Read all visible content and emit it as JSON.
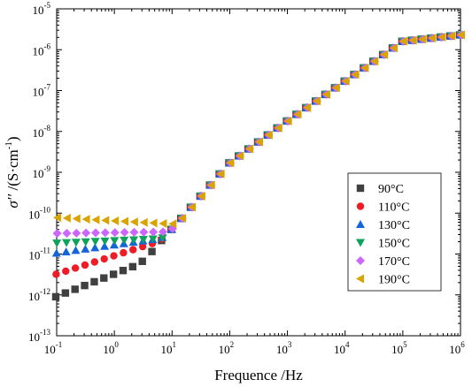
{
  "chart_data": {
    "type": "scatter",
    "xscale": "log",
    "yscale": "log",
    "xlim": [
      0.1,
      1000000
    ],
    "ylim": [
      1e-13,
      1e-05
    ],
    "xlabel": "Frequence /Hz",
    "ylabel": "σ′′ /(S·cm⁻¹)",
    "ylabel_parts": {
      "sigma": "σ′′ ",
      "unit_open": "/(S·cm",
      "unit_exp": "-1",
      "unit_close": ")"
    },
    "xticks": [
      {
        "base": "10",
        "exp": "-1",
        "value": 0.1
      },
      {
        "base": "10",
        "exp": "0",
        "value": 1
      },
      {
        "base": "10",
        "exp": "1",
        "value": 10
      },
      {
        "base": "10",
        "exp": "2",
        "value": 100
      },
      {
        "base": "10",
        "exp": "3",
        "value": 1000
      },
      {
        "base": "10",
        "exp": "4",
        "value": 10000
      },
      {
        "base": "10",
        "exp": "5",
        "value": 100000
      },
      {
        "base": "10",
        "exp": "6",
        "value": 1000000
      }
    ],
    "yticks": [
      {
        "base": "10",
        "exp": "-13",
        "value": 1e-13
      },
      {
        "base": "10",
        "exp": "-12",
        "value": 1e-12
      },
      {
        "base": "10",
        "exp": "-11",
        "value": 1e-11
      },
      {
        "base": "10",
        "exp": "-10",
        "value": 1e-10
      },
      {
        "base": "10",
        "exp": "-9",
        "value": 1e-09
      },
      {
        "base": "10",
        "exp": "-8",
        "value": 1e-08
      },
      {
        "base": "10",
        "exp": "-7",
        "value": 1e-07
      },
      {
        "base": "10",
        "exp": "-6",
        "value": 1e-06
      },
      {
        "base": "10",
        "exp": "-5",
        "value": 1e-05
      }
    ],
    "legend_position": "right-middle",
    "grid": false,
    "series": [
      {
        "name": "90°C",
        "marker": "square",
        "color": "#404040",
        "low_freq_value": 9e-13,
        "low_freq_slope": 0.55
      },
      {
        "name": "110°C",
        "marker": "circle",
        "color": "#ee1c25",
        "low_freq_value": 3.2e-12,
        "low_freq_slope": 0.45
      },
      {
        "name": "130°C",
        "marker": "triangle-up",
        "color": "#1565d8",
        "low_freq_value": 1.05e-11,
        "low_freq_slope": 0.2
      },
      {
        "name": "150°C",
        "marker": "triangle-down",
        "color": "#0ea35a",
        "low_freq_value": 1.85e-11,
        "low_freq_slope": 0.06
      },
      {
        "name": "170°C",
        "marker": "diamond",
        "color": "#cc66ff",
        "low_freq_value": 3.2e-11,
        "low_freq_slope": 0.02
      },
      {
        "name": "190°C",
        "marker": "triangle-left",
        "color": "#d9a300",
        "low_freq_value": 7.8e-11,
        "low_freq_slope": -0.08
      }
    ],
    "common_curve": {
      "anchors": [
        [
          10,
          4e-11
        ],
        [
          100,
          1.7e-09
        ],
        [
          1000,
          1.8e-08
        ],
        [
          10000,
          1.7e-07
        ],
        [
          100000,
          1.6e-06
        ],
        [
          1000000,
          2.3e-06
        ]
      ]
    },
    "points_per_decade": 6
  }
}
